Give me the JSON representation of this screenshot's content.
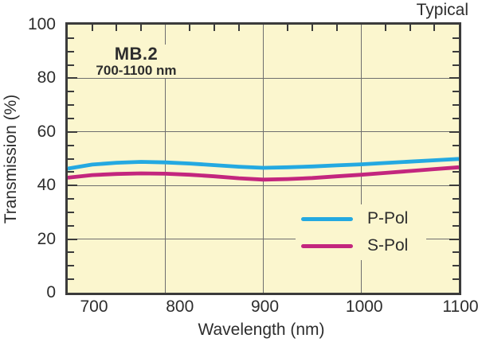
{
  "note": "Typical",
  "chart_data": {
    "type": "line",
    "title": "MB.2",
    "subtitle": "700-1100 nm",
    "xlabel": "Wavelength (nm)",
    "ylabel": "Transmission (%)",
    "xlim": [
      700,
      1100
    ],
    "ylim": [
      0,
      100
    ],
    "x_ticks": [
      700,
      800,
      900,
      1000,
      1100
    ],
    "y_ticks": [
      0,
      20,
      40,
      60,
      80,
      100
    ],
    "x_minor_step": 25,
    "y_minor_step": 5,
    "grid": {
      "x_gridlines": [
        800,
        900,
        1000
      ],
      "y_gridlines": [
        20,
        40,
        60,
        80
      ]
    },
    "legend_position": "inside lower right",
    "x": [
      700,
      725,
      750,
      775,
      800,
      825,
      850,
      875,
      900,
      925,
      950,
      975,
      1000,
      1025,
      1050,
      1075,
      1100
    ],
    "series": [
      {
        "name": "P-Pol",
        "color": "#24A9E1",
        "values": [
          46.3,
          47.8,
          48.5,
          48.8,
          48.6,
          48.2,
          47.6,
          47.0,
          46.6,
          46.8,
          47.1,
          47.5,
          47.9,
          48.4,
          48.9,
          49.4,
          49.9
        ]
      },
      {
        "name": "S-Pol",
        "color": "#C3267E",
        "values": [
          42.9,
          43.9,
          44.3,
          44.5,
          44.4,
          44.0,
          43.4,
          42.7,
          42.2,
          42.4,
          42.8,
          43.4,
          44.0,
          44.7,
          45.4,
          46.1,
          46.8
        ]
      }
    ],
    "colors": {
      "plot_bg": "#FBF6CE",
      "axis": "#3B3B3B",
      "grid": "#6E6E6E",
      "text": "#2D2D2D"
    }
  }
}
